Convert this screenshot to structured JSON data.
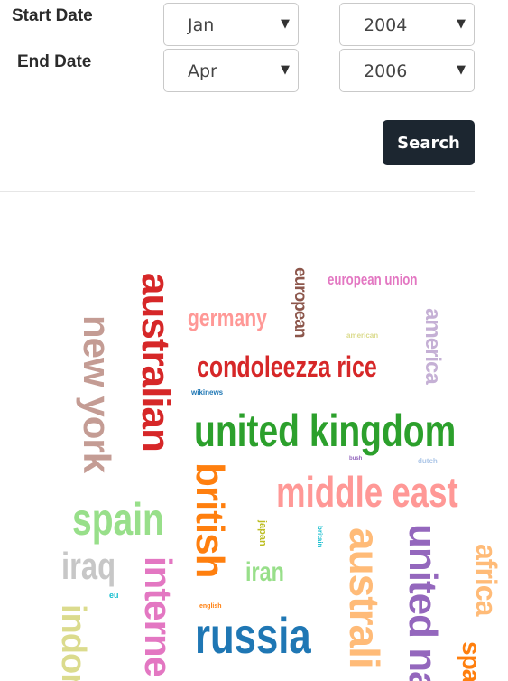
{
  "form": {
    "start_label": "Start Date",
    "end_label": "End Date",
    "start_month": "Jan",
    "start_year": "2004",
    "end_month": "Apr",
    "end_year": "2006",
    "search_label": "Search"
  },
  "word_cloud": {
    "words": [
      {
        "text": "united kingdom",
        "color": "#2ca02c",
        "orientation": "horizontal"
      },
      {
        "text": "middle east",
        "color": "#ff9896",
        "orientation": "horizontal"
      },
      {
        "text": "russia",
        "color": "#1f77b4",
        "orientation": "horizontal"
      },
      {
        "text": "spain",
        "color": "#98df8a",
        "orientation": "horizontal"
      },
      {
        "text": "condoleezza rice",
        "color": "#d62728",
        "orientation": "horizontal"
      },
      {
        "text": "iraq",
        "color": "#c7c7c7",
        "orientation": "horizontal"
      },
      {
        "text": "germany",
        "color": "#ff9896",
        "orientation": "horizontal"
      },
      {
        "text": "iran",
        "color": "#98df8a",
        "orientation": "horizontal"
      },
      {
        "text": "european union",
        "color": "#e377c2",
        "orientation": "horizontal"
      },
      {
        "text": "american",
        "color": "#dbdb8d",
        "orientation": "horizontal"
      },
      {
        "text": "wikinews",
        "color": "#1f77b4",
        "orientation": "horizontal"
      },
      {
        "text": "english",
        "color": "#ff7f0e",
        "orientation": "horizontal"
      },
      {
        "text": "dutch",
        "color": "#aec7e8",
        "orientation": "horizontal"
      },
      {
        "text": "bush",
        "color": "#9467bd",
        "orientation": "horizontal"
      },
      {
        "text": "eu",
        "color": "#17becf",
        "orientation": "horizontal"
      },
      {
        "text": "australian",
        "color": "#d62728",
        "orientation": "vertical"
      },
      {
        "text": "new york",
        "color": "#c49c94",
        "orientation": "vertical"
      },
      {
        "text": "british",
        "color": "#ff7f0e",
        "orientation": "vertical"
      },
      {
        "text": "australi",
        "color": "#ffbb78",
        "orientation": "vertical"
      },
      {
        "text": "united na",
        "color": "#9467bd",
        "orientation": "vertical"
      },
      {
        "text": "africa",
        "color": "#ffbb78",
        "orientation": "vertical"
      },
      {
        "text": "interne",
        "color": "#e377c2",
        "orientation": "vertical"
      },
      {
        "text": "indor",
        "color": "#dbdb8d",
        "orientation": "vertical"
      },
      {
        "text": "america",
        "color": "#c5b0d5",
        "orientation": "vertical"
      },
      {
        "text": "european",
        "color": "#8c564b",
        "orientation": "vertical"
      },
      {
        "text": "spa",
        "color": "#ff7f0e",
        "orientation": "vertical"
      },
      {
        "text": "japan",
        "color": "#bcbd22",
        "orientation": "vertical"
      },
      {
        "text": "britain",
        "color": "#17becf",
        "orientation": "vertical"
      }
    ]
  }
}
